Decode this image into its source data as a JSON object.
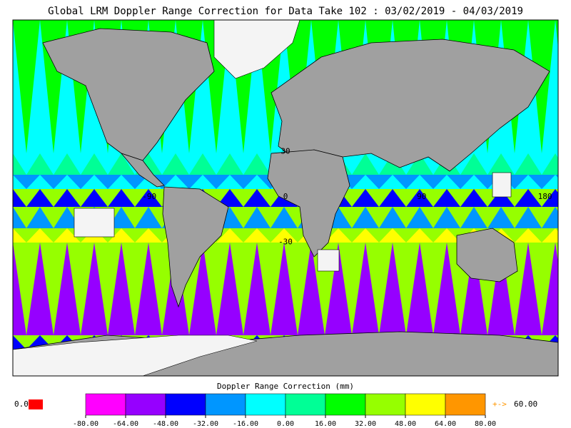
{
  "title": "Global LRM Doppler Range Correction for Data Take 102 : 03/02/2019 - 04/03/2019",
  "map": {
    "grid_labels": [
      {
        "label": "30",
        "lon": 0,
        "lat": 30
      },
      {
        "label": "-90",
        "lon": -90,
        "lat": 0
      },
      {
        "label": "0",
        "lon": 0,
        "lat": 0
      },
      {
        "label": "90",
        "lon": 90,
        "lat": 0
      },
      {
        "label": "180",
        "lon": 180,
        "lat": 0
      },
      {
        "label": "-30",
        "lon": 0,
        "lat": -30
      }
    ]
  },
  "colorbar": {
    "title": "Doppler Range Correction (mm)",
    "lim": [
      -80,
      80
    ],
    "colors": [
      "#ff00ff",
      "#9600ff",
      "#0000ff",
      "#0096ff",
      "#00ffff",
      "#00ff96",
      "#00ff00",
      "#96ff00",
      "#ffff00",
      "#ff9600"
    ],
    "ticks": [
      {
        "value": -80,
        "label": "-80.00"
      },
      {
        "value": -64,
        "label": "-64.00"
      },
      {
        "value": -48,
        "label": "-48.00"
      },
      {
        "value": -32,
        "label": "-32.00"
      },
      {
        "value": -16,
        "label": "-16.00"
      },
      {
        "value": 0,
        "label": "0.00"
      },
      {
        "value": 16,
        "label": "16.00"
      },
      {
        "value": 32,
        "label": "32.00"
      },
      {
        "value": 48,
        "label": "48.00"
      },
      {
        "value": 64,
        "label": "64.00"
      },
      {
        "value": 80,
        "label": "80.00"
      }
    ]
  },
  "missing": {
    "label": "0.0",
    "color": "#ff0000"
  },
  "overflow": {
    "arrow": "+->",
    "label": "60.00",
    "color": "#ff9600"
  }
}
